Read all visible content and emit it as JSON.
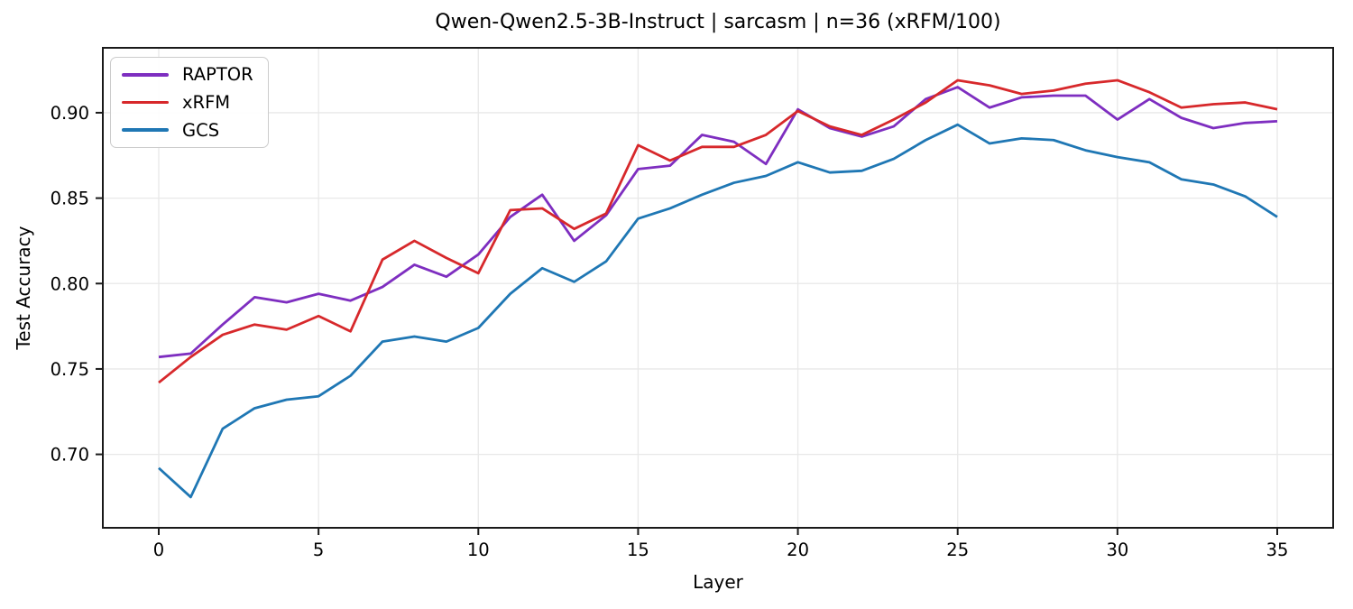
{
  "chart_data": {
    "type": "line",
    "title": "Qwen-Qwen2.5-3B-Instruct | sarcasm | n=36 (xRFM/100)",
    "xlabel": "Layer",
    "ylabel": "Test Accuracy",
    "x": [
      0,
      1,
      2,
      3,
      4,
      5,
      6,
      7,
      8,
      9,
      10,
      11,
      12,
      13,
      14,
      15,
      16,
      17,
      18,
      19,
      20,
      21,
      22,
      23,
      24,
      25,
      26,
      27,
      28,
      29,
      30,
      31,
      32,
      33,
      34,
      35
    ],
    "series": [
      {
        "name": "RAPTOR",
        "color": "#7E2EC0",
        "values": [
          0.757,
          0.759,
          0.776,
          0.792,
          0.789,
          0.794,
          0.79,
          0.798,
          0.811,
          0.804,
          0.817,
          0.839,
          0.852,
          0.825,
          0.84,
          0.867,
          0.869,
          0.887,
          0.883,
          0.87,
          0.902,
          0.891,
          0.886,
          0.892,
          0.908,
          0.915,
          0.903,
          0.909,
          0.91,
          0.91,
          0.896,
          0.908,
          0.897,
          0.891,
          0.894,
          0.895
        ]
      },
      {
        "name": "xRFM",
        "color": "#D7282B",
        "values": [
          0.742,
          0.757,
          0.77,
          0.776,
          0.773,
          0.781,
          0.772,
          0.814,
          0.825,
          0.815,
          0.806,
          0.843,
          0.844,
          0.832,
          0.841,
          0.881,
          0.872,
          0.88,
          0.88,
          0.887,
          0.901,
          0.892,
          0.887,
          0.896,
          0.906,
          0.919,
          0.916,
          0.911,
          0.913,
          0.917,
          0.919,
          0.912,
          0.903,
          0.905,
          0.906,
          0.902
        ]
      },
      {
        "name": "GCS",
        "color": "#1F77B4",
        "values": [
          0.692,
          0.675,
          0.715,
          0.727,
          0.732,
          0.734,
          0.746,
          0.766,
          0.769,
          0.766,
          0.774,
          0.794,
          0.809,
          0.801,
          0.813,
          0.838,
          0.844,
          0.852,
          0.859,
          0.863,
          0.871,
          0.865,
          0.866,
          0.873,
          0.884,
          0.893,
          0.882,
          0.885,
          0.884,
          0.878,
          0.874,
          0.871,
          0.861,
          0.858,
          0.851,
          0.839
        ]
      }
    ],
    "xlim": [
      -1.75,
      36.75
    ],
    "ylim": [
      0.657,
      0.938
    ],
    "xticks": [
      0,
      5,
      10,
      15,
      20,
      25,
      30,
      35
    ],
    "yticks": [
      0.7,
      0.75,
      0.8,
      0.85,
      0.9
    ],
    "ytick_labels": [
      "0.70",
      "0.75",
      "0.80",
      "0.85",
      "0.90"
    ],
    "grid": true,
    "legend_position": "upper-left"
  }
}
